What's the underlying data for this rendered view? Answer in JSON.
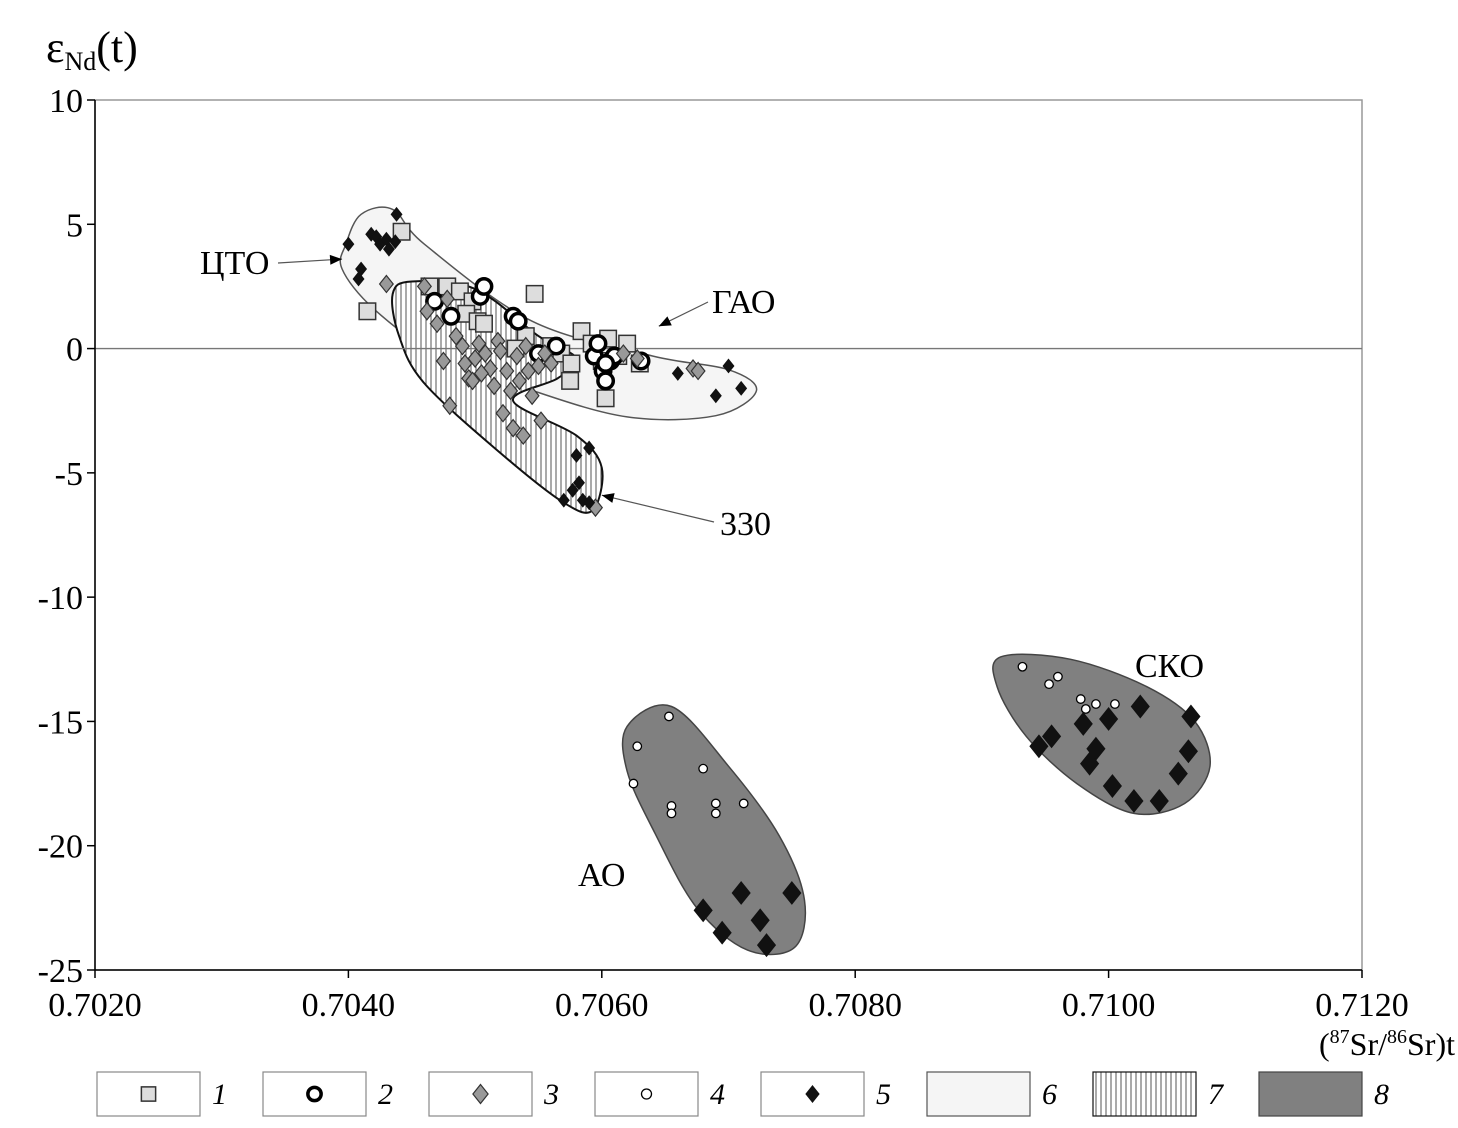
{
  "chart_data": {
    "type": "scatter",
    "ylabel": {
      "main": "ε",
      "sub": "Nd",
      "tail": "(t)"
    },
    "xlabel": {
      "open": "(",
      "sup1": "87",
      "mid": "Sr/",
      "sup2": "86",
      "tail": "Sr)t"
    },
    "xlim": [
      0.702,
      0.712
    ],
    "ylim": [
      -25,
      10
    ],
    "x_ticks": [
      0.702,
      0.704,
      0.706,
      0.708,
      0.71,
      0.712
    ],
    "x_tick_labels": [
      "0.7020",
      "0.7040",
      "0.7060",
      "0.7080",
      "0.7100",
      "0.7120"
    ],
    "y_ticks": [
      10,
      5,
      0,
      -5,
      -10,
      -15,
      -20,
      -25
    ],
    "y_tick_labels": [
      "10",
      "5",
      "0",
      "-5",
      "-10",
      "-15",
      "-20",
      "-25"
    ],
    "grid": false,
    "zero_line": true,
    "fields": [
      {
        "legend": "6",
        "fill": "#f5f5f5",
        "stroke": "#555555",
        "hatch": false,
        "outline": [
          [
            0.70398,
            4.2
          ],
          [
            0.7041,
            5.4
          ],
          [
            0.70435,
            5.6
          ],
          [
            0.7046,
            4.2
          ],
          [
            0.70545,
            1.1
          ],
          [
            0.7064,
            -0.3
          ],
          [
            0.707,
            -0.85
          ],
          [
            0.70722,
            -1.7
          ],
          [
            0.7069,
            -2.7
          ],
          [
            0.7062,
            -2.75
          ],
          [
            0.7054,
            -1.6
          ],
          [
            0.7047,
            -0.25
          ],
          [
            0.7042,
            1.6
          ],
          [
            0.70395,
            3.2
          ]
        ]
      },
      {
        "legend": "7",
        "fill": "#ffffff",
        "stroke": "#111111",
        "hatch": true,
        "outline": [
          [
            0.7045,
            2.7
          ],
          [
            0.705,
            2.4
          ],
          [
            0.7055,
            0.5
          ],
          [
            0.7058,
            -0.4
          ],
          [
            0.70565,
            -1.2
          ],
          [
            0.7053,
            -2.1
          ],
          [
            0.7058,
            -3.5
          ],
          [
            0.706,
            -4.8
          ],
          [
            0.70593,
            -6.5
          ],
          [
            0.7057,
            -6.2
          ],
          [
            0.7052,
            -4.2
          ],
          [
            0.7046,
            -1.4
          ],
          [
            0.7044,
            0.5
          ],
          [
            0.70435,
            2.2
          ]
        ]
      },
      {
        "legend": "8",
        "fill": "#808080",
        "stroke": "#444444",
        "hatch": false,
        "outline": [
          [
            0.7062,
            -15.2
          ],
          [
            0.70655,
            -14.4
          ],
          [
            0.707,
            -16.8
          ],
          [
            0.7074,
            -19.6
          ],
          [
            0.7076,
            -22.2
          ],
          [
            0.70752,
            -24.1
          ],
          [
            0.70715,
            -24.2
          ],
          [
            0.70675,
            -22.5
          ],
          [
            0.70642,
            -19.5
          ],
          [
            0.7062,
            -17.0
          ]
        ]
      },
      {
        "legend": "8",
        "fill": "#808080",
        "stroke": "#444444",
        "hatch": false,
        "outline": [
          [
            0.70915,
            -12.4
          ],
          [
            0.7097,
            -12.5
          ],
          [
            0.7103,
            -13.6
          ],
          [
            0.71068,
            -15.0
          ],
          [
            0.7108,
            -16.8
          ],
          [
            0.7106,
            -18.3
          ],
          [
            0.7102,
            -18.7
          ],
          [
            0.70975,
            -17.5
          ],
          [
            0.70935,
            -15.6
          ],
          [
            0.70912,
            -13.6
          ]
        ]
      }
    ],
    "series": [
      {
        "legend": "1",
        "marker": "square",
        "size": "large",
        "fill": "#dddddd",
        "stroke": "#333333",
        "points": [
          [
            0.70442,
            4.7
          ],
          [
            0.70415,
            1.5
          ],
          [
            0.70464,
            2.5
          ],
          [
            0.70478,
            2.5
          ],
          [
            0.70488,
            2.3
          ],
          [
            0.70498,
            1.9
          ],
          [
            0.70493,
            1.4
          ],
          [
            0.70502,
            1.1
          ],
          [
            0.70507,
            1.0
          ],
          [
            0.70547,
            2.2
          ],
          [
            0.7054,
            0.5
          ],
          [
            0.7056,
            0.1
          ],
          [
            0.70568,
            -0.2
          ],
          [
            0.70575,
            -1.3
          ],
          [
            0.70584,
            0.7
          ],
          [
            0.70592,
            0.2
          ],
          [
            0.706,
            -0.5
          ],
          [
            0.70605,
            0.4
          ],
          [
            0.70613,
            -0.3
          ],
          [
            0.7062,
            0.2
          ],
          [
            0.70603,
            -2.0
          ],
          [
            0.70532,
            0.0
          ],
          [
            0.70576,
            -0.6
          ],
          [
            0.7063,
            -0.6
          ]
        ]
      },
      {
        "legend": "2",
        "marker": "ring",
        "size": "large",
        "fill": "#ffffff",
        "stroke": "#000000",
        "points": [
          [
            0.70468,
            1.9
          ],
          [
            0.70481,
            1.3
          ],
          [
            0.70504,
            2.1
          ],
          [
            0.70507,
            2.5
          ],
          [
            0.7053,
            1.3
          ],
          [
            0.70534,
            1.1
          ],
          [
            0.7055,
            -0.2
          ],
          [
            0.70564,
            0.1
          ],
          [
            0.70594,
            -0.3
          ],
          [
            0.70597,
            0.2
          ],
          [
            0.70601,
            -0.9
          ],
          [
            0.70603,
            -1.3
          ],
          [
            0.70607,
            -0.5
          ],
          [
            0.7061,
            -0.3
          ],
          [
            0.70631,
            -0.5
          ],
          [
            0.70603,
            -0.6
          ]
        ]
      },
      {
        "legend": "3",
        "marker": "diamond",
        "size": "medium",
        "fill": "#999999",
        "stroke": "#333333",
        "points": [
          [
            0.7043,
            2.6
          ],
          [
            0.7046,
            2.5
          ],
          [
            0.70462,
            1.5
          ],
          [
            0.7047,
            1.0
          ],
          [
            0.70478,
            2.0
          ],
          [
            0.70485,
            0.5
          ],
          [
            0.7049,
            0.1
          ],
          [
            0.70492,
            -0.6
          ],
          [
            0.70495,
            -1.2
          ],
          [
            0.705,
            -0.4
          ],
          [
            0.70503,
            0.2
          ],
          [
            0.70508,
            -0.2
          ],
          [
            0.70512,
            -0.8
          ],
          [
            0.70515,
            -1.5
          ],
          [
            0.70518,
            0.3
          ],
          [
            0.7052,
            -0.1
          ],
          [
            0.70522,
            -2.6
          ],
          [
            0.70525,
            -0.9
          ],
          [
            0.70528,
            -1.7
          ],
          [
            0.7053,
            -3.2
          ],
          [
            0.70533,
            -0.3
          ],
          [
            0.70535,
            -1.3
          ],
          [
            0.70538,
            -3.5
          ],
          [
            0.7054,
            0.1
          ],
          [
            0.70542,
            -0.9
          ],
          [
            0.70545,
            -1.9
          ],
          [
            0.7055,
            -0.7
          ],
          [
            0.70552,
            -2.9
          ],
          [
            0.70555,
            -0.2
          ],
          [
            0.7056,
            -0.6
          ],
          [
            0.7048,
            -2.3
          ],
          [
            0.70475,
            -0.5
          ],
          [
            0.70505,
            -1.0
          ],
          [
            0.70498,
            -1.3
          ],
          [
            0.70617,
            -0.2
          ],
          [
            0.70628,
            -0.4
          ],
          [
            0.70672,
            -0.8
          ],
          [
            0.70676,
            -0.9
          ],
          [
            0.70595,
            -6.4
          ]
        ]
      },
      {
        "legend": "4",
        "marker": "circle",
        "size": "medium",
        "fill": "#ffffff",
        "stroke": "#000000",
        "points": [
          [
            0.70625,
            -17.5
          ],
          [
            0.70628,
            -16.0
          ],
          [
            0.70653,
            -14.8
          ],
          [
            0.70655,
            -18.4
          ],
          [
            0.70655,
            -18.7
          ],
          [
            0.7068,
            -16.9
          ],
          [
            0.7069,
            -18.3
          ],
          [
            0.7069,
            -18.7
          ],
          [
            0.70712,
            -18.3
          ],
          [
            0.70932,
            -12.8
          ],
          [
            0.70953,
            -13.5
          ],
          [
            0.7096,
            -13.2
          ],
          [
            0.70978,
            -14.1
          ],
          [
            0.70982,
            -14.5
          ],
          [
            0.7099,
            -14.3
          ],
          [
            0.71005,
            -14.3
          ]
        ]
      },
      {
        "legend": "5",
        "marker": "diamond",
        "size": "small",
        "fill": "#111111",
        "stroke": "#111111",
        "points": [
          [
            0.704,
            4.2
          ],
          [
            0.70408,
            2.8
          ],
          [
            0.7041,
            3.2
          ],
          [
            0.70418,
            4.6
          ],
          [
            0.70422,
            4.5
          ],
          [
            0.70425,
            4.2
          ],
          [
            0.7043,
            4.4
          ],
          [
            0.70432,
            4.0
          ],
          [
            0.70437,
            4.3
          ],
          [
            0.70438,
            5.4
          ],
          [
            0.7058,
            -4.3
          ],
          [
            0.7059,
            -4.0
          ],
          [
            0.7057,
            -6.1
          ],
          [
            0.70577,
            -5.7
          ],
          [
            0.70582,
            -5.4
          ],
          [
            0.70585,
            -6.1
          ],
          [
            0.7059,
            -6.2
          ],
          [
            0.7066,
            -1.0
          ],
          [
            0.7069,
            -1.9
          ],
          [
            0.707,
            -0.7
          ],
          [
            0.7071,
            -1.6
          ]
        ]
      },
      {
        "legend": "5",
        "marker": "diamond",
        "size": "large",
        "fill": "#111111",
        "stroke": "#111111",
        "points": [
          [
            0.7068,
            -22.6
          ],
          [
            0.70695,
            -23.5
          ],
          [
            0.7071,
            -21.9
          ],
          [
            0.70725,
            -23.0
          ],
          [
            0.7073,
            -24.0
          ],
          [
            0.7075,
            -21.9
          ],
          [
            0.70945,
            -16.0
          ],
          [
            0.70955,
            -15.6
          ],
          [
            0.7098,
            -15.1
          ],
          [
            0.70985,
            -16.7
          ],
          [
            0.7099,
            -16.1
          ],
          [
            0.71,
            -14.9
          ],
          [
            0.71003,
            -17.6
          ],
          [
            0.7102,
            -18.2
          ],
          [
            0.71025,
            -14.4
          ],
          [
            0.7104,
            -18.2
          ],
          [
            0.71055,
            -17.1
          ],
          [
            0.71063,
            -16.2
          ],
          [
            0.71065,
            -14.8
          ]
        ]
      }
    ],
    "annotations": [
      {
        "text": "ЦТО",
        "arrow_to": [
          0.70395,
          3.6
        ]
      },
      {
        "text": "ГАО",
        "arrow_to": [
          0.70645,
          0.9
        ]
      },
      {
        "text": "330",
        "arrow_to": [
          0.706,
          -5.9
        ]
      },
      {
        "text": "СКО",
        "arrow_to": null
      },
      {
        "text": "АО",
        "arrow_to": null
      }
    ],
    "legend": [
      "1",
      "2",
      "3",
      "4",
      "5",
      "6",
      "7",
      "8"
    ]
  }
}
